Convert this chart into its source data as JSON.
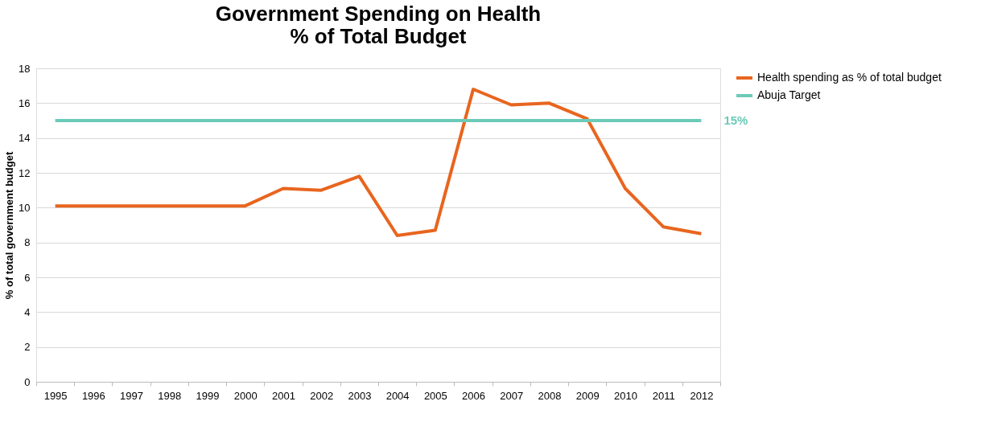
{
  "chart_data": {
    "type": "line",
    "title": "Government Spending on Health\n% of Total Budget",
    "ylabel": "% of total government budget",
    "categories": [
      "1995",
      "1996",
      "1997",
      "1998",
      "1999",
      "2000",
      "2001",
      "2002",
      "2003",
      "2004",
      "2005",
      "2006",
      "2007",
      "2008",
      "2009",
      "2010",
      "2011",
      "2012"
    ],
    "series": [
      {
        "name": "Health spending as % of total budget",
        "color": "#e8651e",
        "values": [
          10.1,
          10.1,
          10.1,
          10.1,
          10.1,
          10.1,
          11.1,
          11.0,
          11.8,
          8.4,
          8.7,
          16.8,
          15.9,
          16.0,
          15.1,
          11.1,
          8.9,
          8.5
        ]
      },
      {
        "name": "Abuja Target",
        "color": "#6ccab8",
        "values": [
          15,
          15,
          15,
          15,
          15,
          15,
          15,
          15,
          15,
          15,
          15,
          15,
          15,
          15,
          15,
          15,
          15,
          15
        ]
      }
    ],
    "annotations": [
      {
        "text": "15%",
        "x": "2012",
        "y": 15
      }
    ],
    "ylim": [
      0,
      18
    ],
    "yticks": [
      0,
      2,
      4,
      6,
      8,
      10,
      12,
      14,
      16,
      18
    ],
    "grid": "y",
    "legend": "right",
    "marker": "none",
    "line_style": "solid"
  }
}
